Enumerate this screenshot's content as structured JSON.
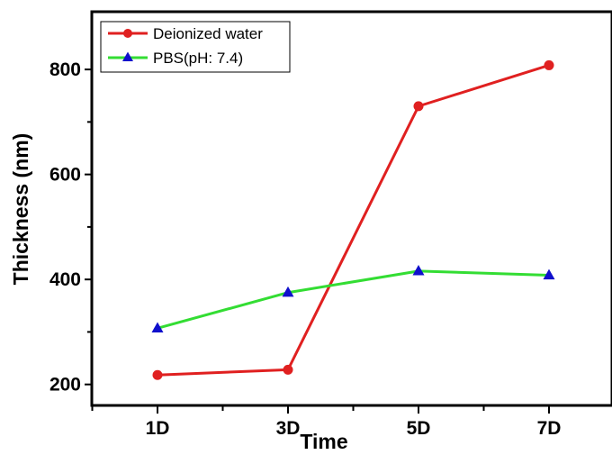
{
  "chart_data": {
    "type": "line",
    "categories": [
      "1D",
      "3D",
      "5D",
      "7D"
    ],
    "xlabel": "Time",
    "ylabel": "Thickness (nm)",
    "ylim": [
      160,
      910
    ],
    "yticks": [
      200,
      400,
      600,
      800
    ],
    "grid": false,
    "legend_position": "top-left",
    "series": [
      {
        "name": "Deionized water",
        "values": [
          218,
          228,
          730,
          808
        ],
        "color": "#e02020",
        "marker": "circle"
      },
      {
        "name": "PBS(pH: 7.4)",
        "values": [
          307,
          375,
          416,
          408
        ],
        "color": "#33dd33",
        "marker": "triangle",
        "marker_color": "#1010cc"
      }
    ]
  }
}
